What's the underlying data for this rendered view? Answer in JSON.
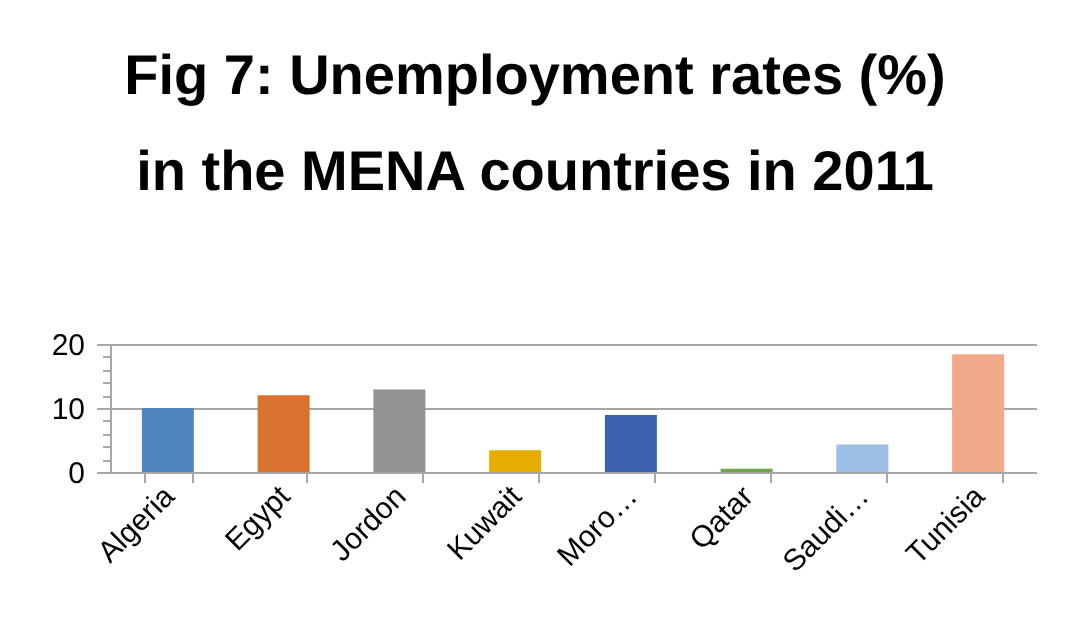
{
  "chart_data": {
    "type": "bar",
    "title": "Fig 7: Unemployment rates (%) in the MENA countries in 2011",
    "categories": [
      "Algeria",
      "Egypt",
      "Jordon",
      "Kuwait",
      "Moro…",
      "Qatar",
      "Saudi…",
      "Tunisia"
    ],
    "values": [
      10,
      12,
      12.9,
      3.4,
      8.9,
      0.5,
      4.3,
      18.4
    ],
    "colors": [
      "#4e87c0",
      "#d9712f",
      "#939393",
      "#e6ad00",
      "#3b62ad",
      "#6ea846",
      "#9dbee5",
      "#f0a98a"
    ],
    "ylim": [
      0,
      20
    ],
    "yticks": [
      0,
      {
        "value": 2,
        "label": null
      },
      {
        "value": 4,
        "label": null
      },
      {
        "value": 6,
        "label": null
      },
      {
        "value": 8,
        "label": null
      },
      10,
      {
        "value": 12,
        "label": null
      },
      {
        "value": 14,
        "label": null
      },
      {
        "value": 16,
        "label": null
      },
      {
        "value": 18,
        "label": null
      },
      20
    ],
    "grid": "y"
  }
}
